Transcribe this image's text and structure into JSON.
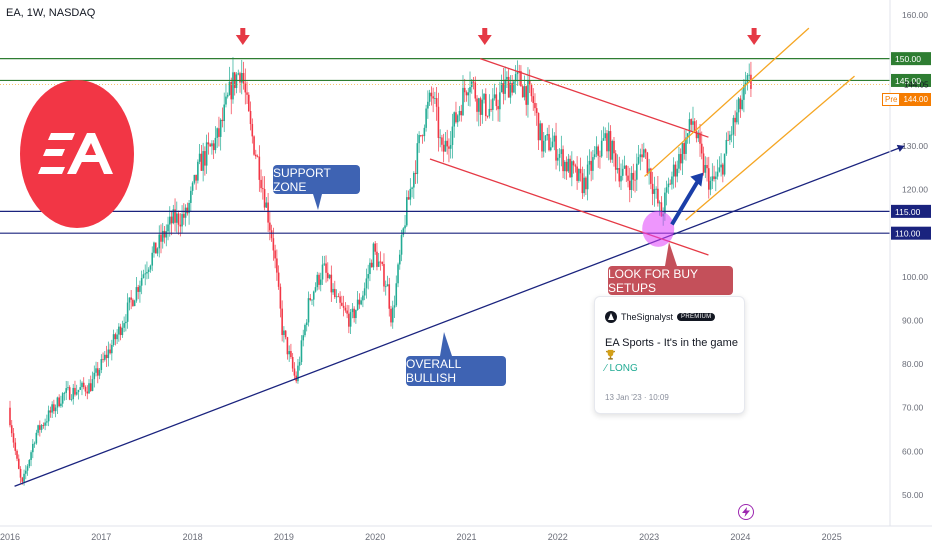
{
  "header": {
    "symbol_line": "EA, 1W, NASDAQ"
  },
  "colors": {
    "up": "#22ab94",
    "down": "#f23645",
    "green_line": "#2e7d32",
    "blue_line": "#1a237e",
    "orange_channel": "#f5a623",
    "red_channel": "#e53945",
    "price_tag": "#f57c00",
    "logo_red": "#f23645",
    "callout_blue": "#3e63b3",
    "callout_red": "#c4505a"
  },
  "chart_data": {
    "type": "candlestick",
    "x_tick_labels": [
      "2016",
      "2017",
      "2018",
      "2019",
      "2020",
      "2021",
      "2022",
      "2023",
      "2024",
      "2025"
    ],
    "x_range": [
      2016.0,
      2025.8
    ],
    "y_tick_labels": [
      "160.00",
      "150.00",
      "145.00",
      "144.05",
      "144.00",
      "130.00",
      "120.00",
      "115.00",
      "110.00",
      "100.00",
      "90.00",
      "80.00",
      "70.00",
      "60.00",
      "50.00"
    ],
    "y_range": [
      47,
      163
    ],
    "price_path": [
      [
        2016.0,
        70
      ],
      [
        2016.1,
        57
      ],
      [
        2016.15,
        52
      ],
      [
        2016.3,
        64
      ],
      [
        2016.6,
        73
      ],
      [
        2016.9,
        75
      ],
      [
        2017.2,
        87
      ],
      [
        2017.5,
        102
      ],
      [
        2017.8,
        113
      ],
      [
        2017.95,
        114
      ],
      [
        2018.1,
        126
      ],
      [
        2018.3,
        132
      ],
      [
        2018.45,
        144
      ],
      [
        2018.55,
        148
      ],
      [
        2018.65,
        134
      ],
      [
        2018.75,
        125
      ],
      [
        2018.9,
        108
      ],
      [
        2019.0,
        88
      ],
      [
        2019.1,
        80
      ],
      [
        2019.15,
        76
      ],
      [
        2019.3,
        95
      ],
      [
        2019.45,
        102
      ],
      [
        2019.6,
        94
      ],
      [
        2019.75,
        90
      ],
      [
        2019.9,
        97
      ],
      [
        2020.0,
        106
      ],
      [
        2020.15,
        98
      ],
      [
        2020.2,
        90
      ],
      [
        2020.35,
        114
      ],
      [
        2020.55,
        136
      ],
      [
        2020.65,
        142
      ],
      [
        2020.75,
        128
      ],
      [
        2020.9,
        136
      ],
      [
        2021.05,
        146
      ],
      [
        2021.15,
        140
      ],
      [
        2021.3,
        138
      ],
      [
        2021.45,
        144
      ],
      [
        2021.6,
        145
      ],
      [
        2021.75,
        140
      ],
      [
        2021.85,
        130
      ],
      [
        2021.95,
        131
      ],
      [
        2022.1,
        126
      ],
      [
        2022.3,
        121
      ],
      [
        2022.4,
        126
      ],
      [
        2022.55,
        132
      ],
      [
        2022.7,
        124
      ],
      [
        2022.85,
        122
      ],
      [
        2022.95,
        130
      ],
      [
        2023.05,
        122
      ],
      [
        2023.15,
        114
      ],
      [
        2023.25,
        122
      ],
      [
        2023.4,
        130
      ],
      [
        2023.5,
        136
      ],
      [
        2023.6,
        126
      ],
      [
        2023.7,
        121
      ],
      [
        2023.8,
        124
      ],
      [
        2023.9,
        132
      ],
      [
        2024.0,
        138
      ],
      [
        2024.1,
        144
      ]
    ],
    "horizontal_levels": [
      {
        "price": 150,
        "color": "green"
      },
      {
        "price": 145,
        "color": "green"
      },
      {
        "price": 115,
        "color": "blue"
      },
      {
        "price": 110,
        "color": "blue"
      }
    ],
    "last_price_line": 144.05,
    "trendlines": [
      {
        "name": "overall-bullish-trendline",
        "color": "blue",
        "from": [
          2016.05,
          52
        ],
        "to": [
          2025.8,
          130
        ]
      },
      {
        "name": "red-channel-upper",
        "color": "red",
        "from": [
          2021.15,
          150
        ],
        "to": [
          2023.65,
          132
        ]
      },
      {
        "name": "red-channel-lower",
        "color": "red",
        "from": [
          2020.6,
          127
        ],
        "to": [
          2023.65,
          105
        ]
      },
      {
        "name": "orange-channel-upper",
        "color": "orange",
        "from": [
          2022.95,
          123
        ],
        "to": [
          2024.75,
          157
        ]
      },
      {
        "name": "orange-channel-lower",
        "color": "orange",
        "from": [
          2023.4,
          113
        ],
        "to": [
          2025.25,
          146
        ]
      }
    ],
    "annotations": [
      {
        "text": "SUPPORT ZONE"
      },
      {
        "text": "OVERALL BULLISH"
      },
      {
        "text": "LOOK FOR BUY SETUPS"
      }
    ],
    "sell_arrows_at": [
      2018.55,
      2021.2,
      2024.15
    ],
    "highlight_circle_at": [
      2023.1,
      111
    ]
  },
  "price_tag": {
    "label": "Pre",
    "value": "144.00"
  },
  "callouts": {
    "support_zone": "SUPPORT ZONE",
    "overall_bullish": "OVERALL BULLISH",
    "look_for_buy": "LOOK FOR BUY SETUPS"
  },
  "idea_card": {
    "author": "TheSignalyst",
    "badge": "PREMIUM",
    "title": "EA Sports - It's in the game",
    "direction": "LONG",
    "date": "13 Jan '23 · 10:09"
  }
}
